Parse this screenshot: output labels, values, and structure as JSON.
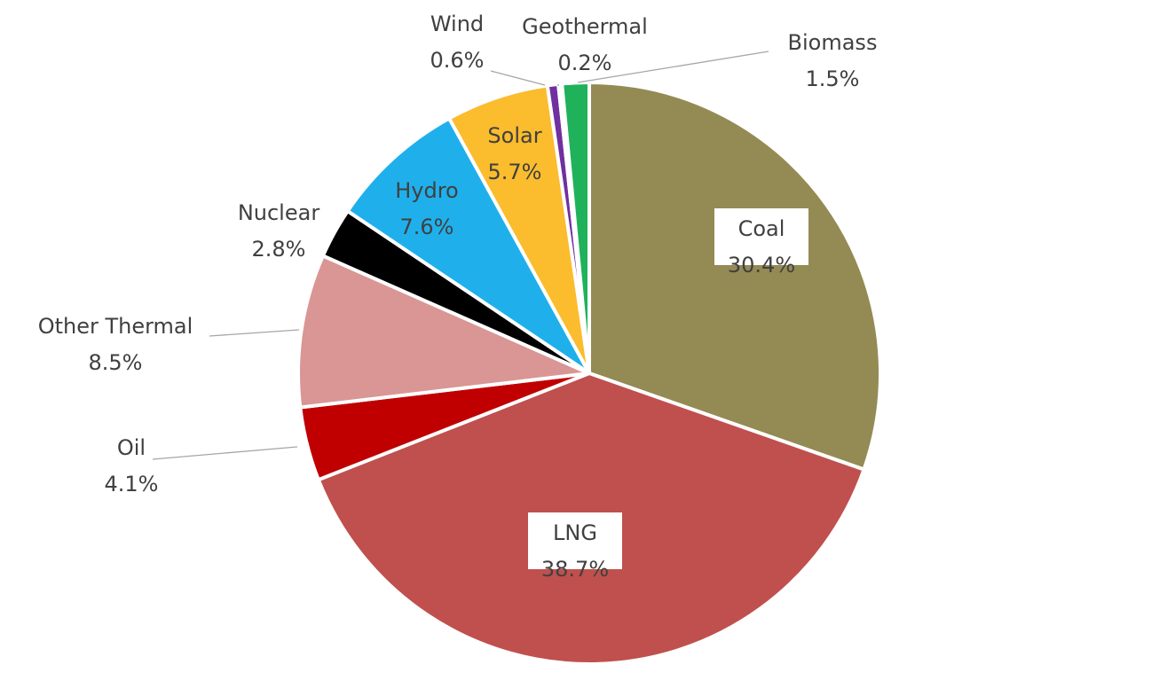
{
  "chart_data": {
    "type": "pie",
    "title": "",
    "slices": [
      {
        "name": "Coal",
        "value": 30.4,
        "label_value": "30.4%",
        "color": "#948A54"
      },
      {
        "name": "LNG",
        "value": 38.7,
        "label_value": "38.7%",
        "color": "#C0504D"
      },
      {
        "name": "Oil",
        "value": 4.1,
        "label_value": "4.1%",
        "color": "#C00000"
      },
      {
        "name": "Other Thermal",
        "value": 8.5,
        "label_value": "8.5%",
        "color": "#D99694"
      },
      {
        "name": "Nuclear",
        "value": 2.8,
        "label_value": "2.8%",
        "color": "#000000"
      },
      {
        "name": "Hydro",
        "value": 7.6,
        "label_value": "7.6%",
        "color": "#1FB0EC"
      },
      {
        "name": "Solar",
        "value": 5.7,
        "label_value": "5.7%",
        "color": "#FBBC2D"
      },
      {
        "name": "Wind",
        "value": 0.6,
        "label_value": "0.6%",
        "color": "#7030A0"
      },
      {
        "name": "Geothermal",
        "value": 0.2,
        "label_value": "0.2%",
        "color": "#FFFFFF"
      },
      {
        "name": "Biomass",
        "value": 1.5,
        "label_value": "1.5%",
        "color": "#1FB25A"
      }
    ],
    "start_angle_deg": 0,
    "direction": "clockwise",
    "legend": "none"
  }
}
